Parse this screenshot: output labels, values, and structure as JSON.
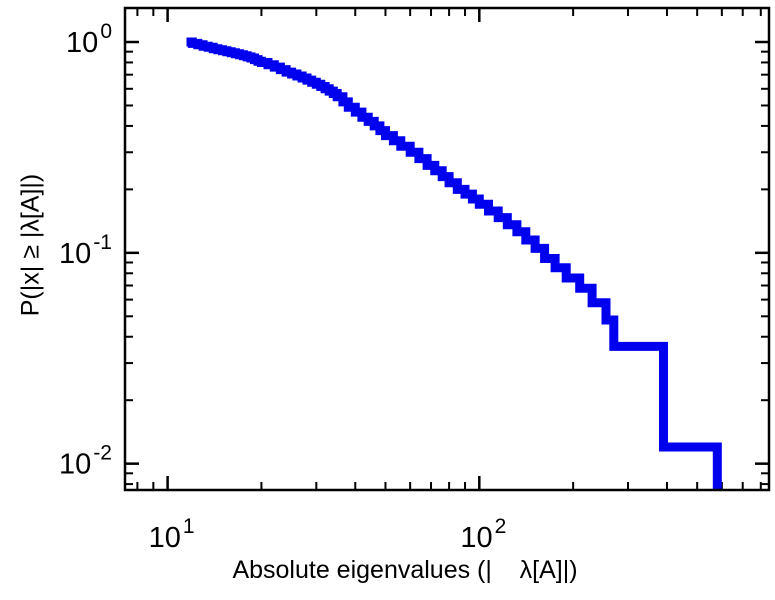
{
  "chart_data": {
    "type": "line",
    "subtype": "ccdf-staircase",
    "title": "",
    "xlabel": "Absolute eigenvalues (|    λ[A]|)",
    "ylabel": "P(|x| ≥ |λ[A]|)",
    "xscale": "log",
    "yscale": "log",
    "xlim": [
      7.3,
      850
    ],
    "ylim": [
      0.0075,
      1.45
    ],
    "x_major_ticks": [
      10,
      100
    ],
    "y_major_ticks": [
      1,
      0.1,
      0.01
    ],
    "grid": false,
    "legend": "none",
    "line_color": "#0000ee",
    "line_width": 9,
    "axis_color": "#000000",
    "background_color": "#ffffff",
    "step_mode": "after",
    "series": [
      {
        "name": "eigenvalue-ccdf",
        "x": [
          11.5,
          12,
          12.5,
          13,
          13.5,
          14,
          14.5,
          15,
          15.5,
          16,
          16.5,
          17,
          17.5,
          18,
          18.5,
          19,
          19.5,
          20,
          21,
          22,
          23,
          24,
          25,
          26,
          27,
          28,
          29,
          30,
          31,
          32,
          33,
          34,
          35,
          36.5,
          38,
          40,
          42,
          44,
          46,
          48,
          50,
          53,
          56,
          60,
          64,
          68,
          72,
          76,
          80,
          85,
          90,
          95,
          100,
          107,
          115,
          123,
          132,
          141,
          151,
          162,
          175,
          190,
          210,
          230,
          255,
          270,
          390,
          580
        ],
        "y": [
          1.0,
          0.985,
          0.97,
          0.955,
          0.945,
          0.93,
          0.92,
          0.91,
          0.9,
          0.89,
          0.88,
          0.87,
          0.86,
          0.85,
          0.84,
          0.825,
          0.81,
          0.8,
          0.78,
          0.76,
          0.74,
          0.72,
          0.705,
          0.69,
          0.675,
          0.66,
          0.645,
          0.63,
          0.615,
          0.6,
          0.585,
          0.57,
          0.55,
          0.52,
          0.49,
          0.465,
          0.44,
          0.42,
          0.4,
          0.38,
          0.36,
          0.34,
          0.32,
          0.3,
          0.28,
          0.26,
          0.245,
          0.23,
          0.215,
          0.2,
          0.19,
          0.18,
          0.17,
          0.158,
          0.147,
          0.136,
          0.126,
          0.115,
          0.105,
          0.094,
          0.085,
          0.076,
          0.068,
          0.058,
          0.048,
          0.036,
          0.012,
          0.004
        ]
      }
    ]
  }
}
